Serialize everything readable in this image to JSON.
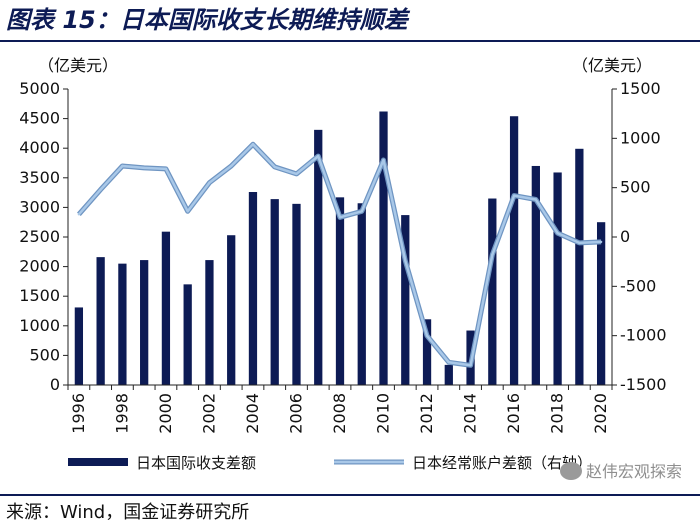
{
  "figure": {
    "title": "图表 15：日本国际收支长期维持顺差",
    "source": "来源：Wind，国金证券研究所",
    "watermark": "赵伟宏观探索"
  },
  "colors": {
    "bar": "#0d1b55",
    "line": "#a9c8e8",
    "line_stroke": "#6f95c2",
    "title": "#0d1b55"
  },
  "chart_data": {
    "type": "bar",
    "title": "日本国际收支长期维持顺差",
    "left_unit": "（亿美元）",
    "right_unit": "（亿美元）",
    "categories": [
      "1996",
      "1997",
      "1998",
      "1999",
      "2000",
      "2001",
      "2002",
      "2003",
      "2004",
      "2005",
      "2006",
      "2007",
      "2008",
      "2009",
      "2010",
      "2011",
      "2012",
      "2013",
      "2014",
      "2015",
      "2016",
      "2017",
      "2018",
      "2019",
      "2020"
    ],
    "x_tick_labels": [
      "1996",
      "1998",
      "2000",
      "2002",
      "2004",
      "2006",
      "2008",
      "2010",
      "2012",
      "2014",
      "2016",
      "2018",
      "2020"
    ],
    "ylim_left": [
      0,
      5000
    ],
    "yticks_left": [
      "0",
      "500",
      "1000",
      "1500",
      "2000",
      "2500",
      "3000",
      "3500",
      "4000",
      "4500",
      "5000"
    ],
    "ylim_right": [
      -1500,
      1500
    ],
    "yticks_right": [
      "-1500",
      "-1000",
      "-500",
      "0",
      "500",
      "1000",
      "1500"
    ],
    "series": [
      {
        "name": "日本国际收支差额",
        "type": "bar",
        "axis": "left",
        "values": [
          1310,
          2160,
          2050,
          2110,
          2590,
          1700,
          2110,
          2530,
          3260,
          3140,
          3060,
          4310,
          3170,
          3070,
          4620,
          2870,
          1110,
          340,
          920,
          3150,
          4540,
          3700,
          3590,
          3990,
          2750
        ]
      },
      {
        "name": "日本经常账户差额（右轴）",
        "type": "line",
        "axis": "right",
        "values": [
          230,
          480,
          720,
          700,
          690,
          260,
          550,
          720,
          940,
          710,
          640,
          820,
          200,
          260,
          780,
          -240,
          -1000,
          -1270,
          -1300,
          -180,
          420,
          380,
          40,
          -60,
          -50
        ]
      }
    ]
  }
}
